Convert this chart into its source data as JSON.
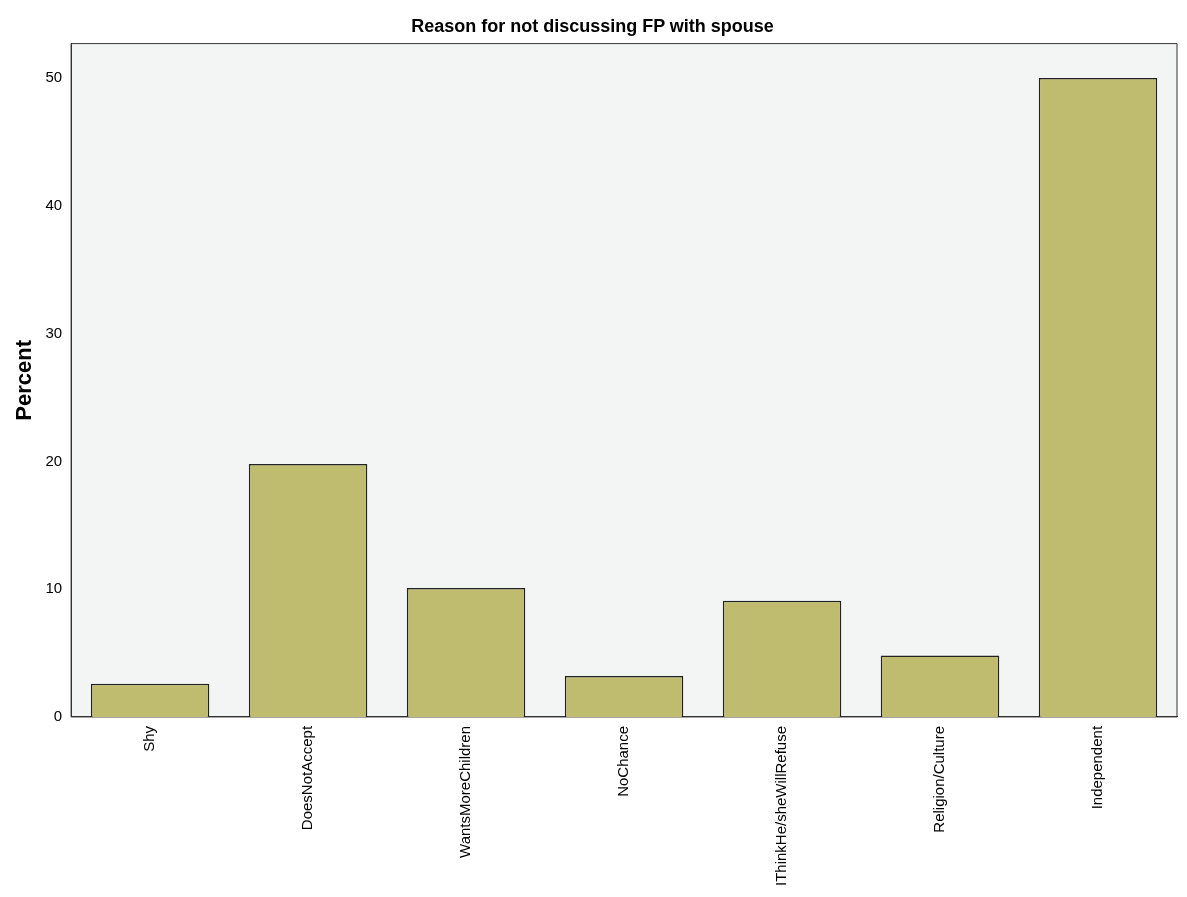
{
  "chart_data": {
    "type": "bar",
    "title": "Reason for not discussing FP with spouse",
    "ylabel": "Percent",
    "categories": [
      "Shy",
      "DoesNotAccept",
      "WantsMoreChildren",
      "NoChance",
      "IThinkHe/sheWillRefuse",
      "Religion/Culture",
      "Independent"
    ],
    "values": [
      2.6,
      19.8,
      10.1,
      3.2,
      9.1,
      4.8,
      50.0
    ],
    "color": "#bfbb6f",
    "ylim": [
      0,
      52.7
    ],
    "yticks": [
      0,
      10,
      20,
      30,
      40,
      50
    ],
    "grid": false,
    "legend": false
  }
}
